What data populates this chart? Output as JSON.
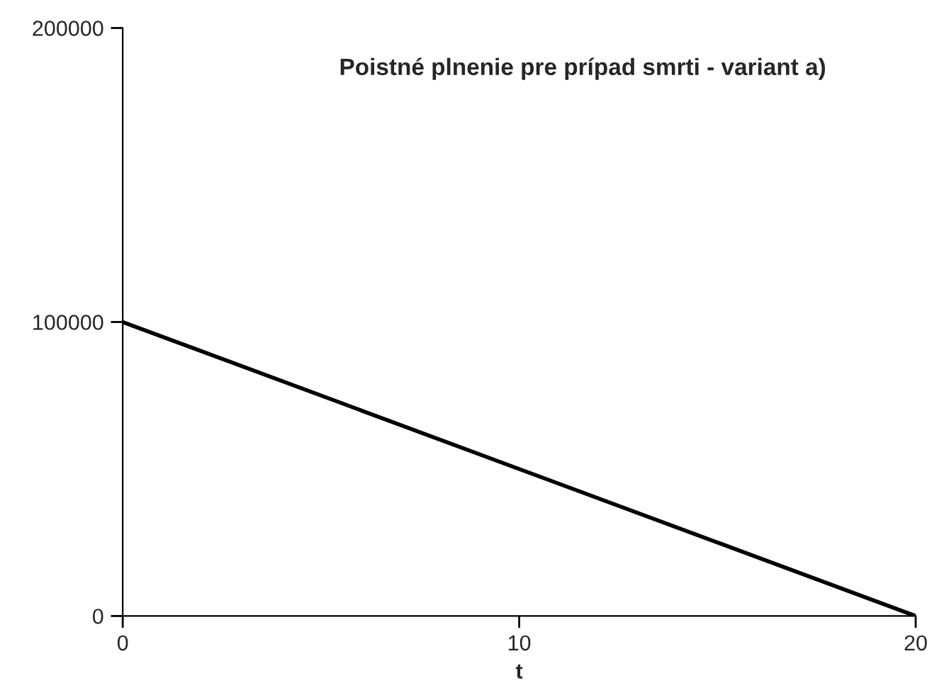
{
  "chart_data": {
    "type": "line",
    "title": "Poistné plnenie pre prípad smrti - variant a)",
    "xlabel": "t",
    "x": [
      0,
      20
    ],
    "series": [
      {
        "color": "#000000",
        "values": [
          100000,
          0
        ]
      }
    ],
    "xlim": [
      0,
      20
    ],
    "xticks": [
      0,
      10,
      20
    ],
    "ylim": [
      0,
      200000
    ],
    "yticks": [
      0,
      100000,
      200000
    ],
    "grid": false,
    "legend": false,
    "marker": "none",
    "line_style": "solid"
  }
}
